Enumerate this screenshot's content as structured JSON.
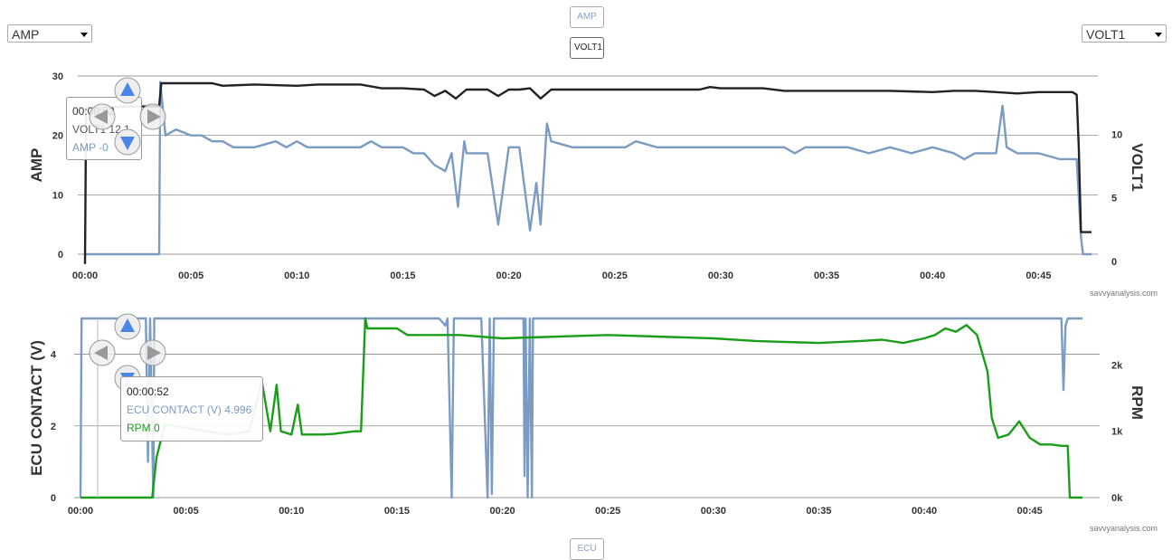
{
  "controls": {
    "left_select": "AMP",
    "right_select": "VOLT1",
    "btn_amp": "AMP",
    "btn_volt1": "VOLT1",
    "btn_ecu": "ECU"
  },
  "credit": "savvyanalysis.com",
  "colors": {
    "amp": "#7b9bc3",
    "volt": "#222222",
    "ecu": "#7b9bc3",
    "rpm": "#1a9e1a",
    "grid": "#888888",
    "nav": "#4a86e8"
  },
  "tooltip_top": {
    "time": "00:00:52",
    "line1_label": "VOLT1",
    "line1_value": "12.1",
    "line2_label": "AMP",
    "line2_value": "-0"
  },
  "tooltip_bottom": {
    "time": "00:00:52",
    "line1_label": "ECU CONTACT (V)",
    "line1_value": "4.996",
    "line2_label": "RPM",
    "line2_value": "0"
  },
  "chart_data": [
    {
      "type": "line",
      "title": "",
      "xlabel": "",
      "ylabel": "AMP",
      "y2label": "VOLT1",
      "xticks": [
        "00:00",
        "00:05",
        "00:10",
        "00:15",
        "00:20",
        "00:25",
        "00:30",
        "00:35",
        "00:40",
        "00:45"
      ],
      "xlim_min": [
        0,
        47.5
      ],
      "ylim": [
        0,
        30
      ],
      "yticks": [
        0,
        10,
        20,
        30
      ],
      "y2lim": [
        0,
        14
      ],
      "y2ticks": [
        0,
        5,
        10
      ],
      "grid": true,
      "series": [
        {
          "name": "AMP",
          "axis": "left",
          "x": [
            0,
            3.5,
            3.55,
            3.8,
            4.3,
            5,
            5.5,
            6,
            6.5,
            7,
            8,
            9,
            9.5,
            10,
            10.5,
            11,
            12,
            13,
            13.5,
            14,
            15,
            15.5,
            16,
            16.5,
            17,
            17.3,
            17.6,
            17.9,
            18,
            19,
            19.5,
            20,
            20.5,
            21,
            21.3,
            21.5,
            21.8,
            22,
            23,
            24,
            25,
            25.5,
            26,
            27,
            28,
            29,
            30,
            31,
            32,
            33,
            33.5,
            34,
            35,
            36,
            37,
            38,
            39,
            40,
            41,
            41.5,
            42,
            42.5,
            43,
            43.3,
            43.5,
            44,
            44.5,
            45,
            46,
            46.8,
            47,
            47.1,
            47.5
          ],
          "values": [
            0,
            0,
            29,
            20,
            21,
            20,
            20,
            19,
            19,
            18,
            18,
            19,
            18,
            19,
            18,
            18,
            18,
            18,
            19,
            18,
            18,
            17,
            17,
            15,
            14,
            17,
            8,
            19,
            17,
            17,
            5,
            18,
            18,
            4,
            12,
            5,
            22,
            19,
            18,
            18,
            18,
            18,
            19,
            18,
            18,
            18,
            18,
            18,
            18,
            18,
            17,
            18,
            18,
            18,
            17,
            18,
            17,
            18,
            17,
            16,
            17,
            17,
            17,
            25,
            18,
            17,
            17,
            17,
            16,
            16,
            3,
            0,
            0
          ]
        },
        {
          "name": "VOLT1",
          "axis": "right",
          "x": [
            0,
            0.05,
            0.1,
            0.2,
            3.5,
            3.6,
            4,
            6,
            6.5,
            8,
            10,
            11,
            13,
            14,
            15,
            16,
            16.5,
            17,
            17.5,
            18,
            18.5,
            19,
            19.5,
            20,
            20.5,
            21,
            21.5,
            22,
            23,
            25,
            27,
            29,
            29.5,
            30,
            32,
            33,
            34,
            36,
            38,
            40,
            41,
            42,
            43,
            44,
            45,
            46,
            46.6,
            46.8,
            46.9,
            47,
            47.5
          ],
          "values": [
            -0.2,
            12.1,
            12.1,
            12.1,
            12.2,
            14,
            14,
            14,
            13.8,
            13.9,
            13.8,
            13.9,
            13.9,
            13.6,
            13.6,
            13.5,
            13,
            13.4,
            12.8,
            13.5,
            13.5,
            13.5,
            13,
            13.5,
            13.5,
            13.6,
            12.8,
            13.5,
            13.5,
            13.5,
            13.5,
            13.5,
            13.7,
            13.6,
            13.6,
            13.4,
            13.4,
            13.4,
            13.4,
            13.3,
            13.4,
            13.4,
            13.3,
            13.2,
            13.3,
            13.3,
            13.3,
            13.1,
            9,
            2.3,
            2.3
          ]
        }
      ]
    },
    {
      "type": "line",
      "title": "",
      "xlabel": "",
      "ylabel": "ECU CONTACT (V)",
      "y2label": "RPM",
      "xticks": [
        "00:00",
        "00:05",
        "00:10",
        "00:15",
        "00:20",
        "00:25",
        "00:30",
        "00:35",
        "00:40",
        "00:45"
      ],
      "xlim_min": [
        0,
        47.5
      ],
      "ylim": [
        0,
        5
      ],
      "yticks": [
        0,
        2,
        4
      ],
      "y2lim": [
        0,
        2700
      ],
      "y2ticks": [
        "0k",
        "1k",
        "2k"
      ],
      "grid": true,
      "series": [
        {
          "name": "ECU CONTACT (V)",
          "axis": "left",
          "x": [
            0,
            0.05,
            3.1,
            3.2,
            3.3,
            3.45,
            3.5,
            17,
            17.3,
            17.4,
            17.6,
            17.7,
            18,
            19,
            19.3,
            19.4,
            19.5,
            19.6,
            20,
            21,
            21.05,
            21.1,
            21.2,
            21.3,
            21.4,
            21.45,
            46.5,
            46.6,
            46.7,
            46.8,
            47.5
          ],
          "values": [
            0,
            5,
            5,
            1,
            5,
            0,
            5,
            5,
            4.8,
            5,
            0,
            5,
            5,
            5,
            0,
            5,
            0.1,
            5,
            5,
            5,
            0.6,
            5,
            0,
            5,
            0,
            5,
            5,
            3,
            4.8,
            5,
            5
          ]
        },
        {
          "name": "RPM",
          "axis": "right",
          "x": [
            0,
            3.4,
            3.6,
            4,
            5,
            6,
            7,
            8,
            8.6,
            9,
            9.3,
            9.5,
            10,
            10.3,
            10.5,
            11,
            11.5,
            12,
            13,
            13.3,
            13.5,
            13.6,
            14,
            15,
            15.5,
            16,
            18,
            20,
            22,
            25,
            28,
            30,
            32,
            33,
            35,
            37,
            38,
            39,
            40,
            40.5,
            41,
            41.5,
            42,
            42.5,
            43,
            43.2,
            43.5,
            44,
            44.5,
            45,
            45.5,
            46,
            46.5,
            46.8,
            46.9,
            47.5
          ],
          "values": [
            0,
            0,
            600,
            1100,
            1050,
            1000,
            950,
            1000,
            1750,
            1000,
            1700,
            1000,
            950,
            1400,
            950,
            950,
            950,
            960,
            1000,
            1000,
            2700,
            2550,
            2550,
            2550,
            2450,
            2450,
            2450,
            2400,
            2420,
            2450,
            2420,
            2400,
            2360,
            2350,
            2330,
            2360,
            2380,
            2330,
            2400,
            2450,
            2550,
            2500,
            2600,
            2450,
            1900,
            1200,
            900,
            950,
            1150,
            900,
            800,
            800,
            780,
            780,
            0,
            0
          ]
        }
      ]
    }
  ]
}
